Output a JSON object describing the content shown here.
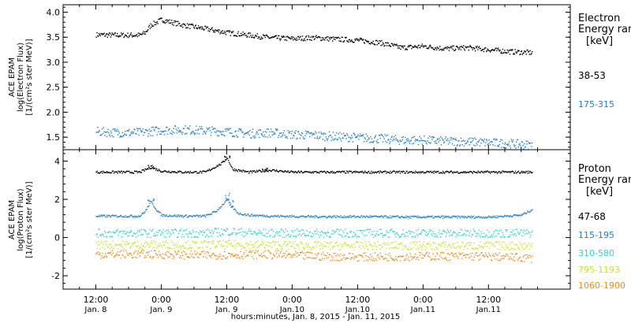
{
  "chart_data": [
    {
      "type": "scatter",
      "instrument": "ACE EPAM",
      "ylabel_line1": "ACE EPAM",
      "ylabel_line2": "log(Electron Flux)",
      "ylabel_line3": "[1/(cm²s ster MeV)]",
      "legend_title_line1": "Electron",
      "legend_title_line2": "Energy ran",
      "legend_unit": "[keV]",
      "ylim": [
        1.25,
        4.15
      ],
      "yticks": [
        "4.0",
        "3.5",
        "3.0",
        "2.5",
        "2.0",
        "1.5"
      ],
      "yticks_values": [
        4.0,
        3.5,
        3.0,
        2.5,
        2.0,
        1.5
      ],
      "series": [
        {
          "name": "38-53",
          "color": "#000000",
          "x": [
            0,
            4,
            8,
            9,
            10,
            12,
            16,
            20,
            24,
            28,
            32,
            36,
            40,
            44,
            48,
            52,
            56,
            60,
            64,
            68,
            72,
            76,
            80
          ],
          "y": [
            3.56,
            3.55,
            3.55,
            3.6,
            3.75,
            3.86,
            3.75,
            3.68,
            3.6,
            3.55,
            3.5,
            3.48,
            3.5,
            3.47,
            3.45,
            3.4,
            3.3,
            3.33,
            3.28,
            3.3,
            3.26,
            3.22,
            3.2
          ]
        },
        {
          "name": "175-315",
          "color": "#1a7fd4",
          "x": [
            0,
            4,
            8,
            12,
            16,
            20,
            24,
            28,
            32,
            36,
            40,
            44,
            48,
            52,
            56,
            60,
            64,
            68,
            72,
            76,
            80
          ],
          "y": [
            1.62,
            1.6,
            1.6,
            1.65,
            1.66,
            1.64,
            1.62,
            1.58,
            1.6,
            1.56,
            1.55,
            1.52,
            1.5,
            1.48,
            1.45,
            1.45,
            1.43,
            1.42,
            1.4,
            1.38,
            1.35
          ]
        }
      ]
    },
    {
      "type": "scatter",
      "instrument": "ACE EPAM",
      "ylabel_line1": "ACE EPAM",
      "ylabel_line2": "log(Proton Flux)",
      "ylabel_line3": "[1/(cm²s ster MeV)]",
      "legend_title_line1": "Proton",
      "legend_title_line2": "Energy ran",
      "legend_unit": "[keV]",
      "ylim": [
        -2.7,
        4.6
      ],
      "yticks": [
        "4",
        "2",
        "0",
        "-2"
      ],
      "yticks_values": [
        4,
        2,
        0,
        -2
      ],
      "series": [
        {
          "name": "47-68",
          "color": "#000000",
          "x": [
            0,
            8,
            10,
            12,
            16,
            20,
            23,
            24,
            25,
            28,
            32,
            36,
            40,
            48,
            56,
            64,
            72,
            80
          ],
          "y": [
            3.45,
            3.45,
            3.7,
            3.5,
            3.45,
            3.45,
            3.9,
            4.2,
            3.6,
            3.45,
            3.55,
            3.45,
            3.45,
            3.45,
            3.45,
            3.45,
            3.45,
            3.45
          ],
          "spikes": [
            [
              10,
              3.9
            ],
            [
              24,
              4.3
            ],
            [
              31,
              3.7
            ]
          ]
        },
        {
          "name": "115-195",
          "color": "#1a7fd4",
          "x": [
            0,
            8,
            9,
            10,
            11,
            12,
            16,
            20,
            22,
            24,
            25,
            26,
            28,
            32,
            40,
            48,
            56,
            64,
            72,
            78,
            80
          ],
          "y": [
            1.15,
            1.15,
            1.4,
            1.9,
            1.5,
            1.2,
            1.15,
            1.15,
            1.4,
            2.0,
            1.6,
            1.3,
            1.2,
            1.15,
            1.12,
            1.12,
            1.1,
            1.1,
            1.1,
            1.2,
            1.5
          ],
          "spikes": [
            [
              10,
              2.1
            ],
            [
              24,
              2.6
            ],
            [
              25,
              2.0
            ]
          ]
        },
        {
          "name": "310-580",
          "color": "#22d6d6",
          "x": [
            0,
            10,
            20,
            24,
            30,
            40,
            50,
            60,
            70,
            80
          ],
          "y": [
            0.25,
            0.25,
            0.25,
            0.35,
            0.25,
            0.25,
            0.25,
            0.25,
            0.25,
            0.25
          ]
        },
        {
          "name": "795-1193",
          "color": "#c2e81c",
          "x": [
            0,
            10,
            20,
            30,
            40,
            50,
            60,
            70,
            80
          ],
          "y": [
            -0.35,
            -0.35,
            -0.35,
            -0.35,
            -0.4,
            -0.4,
            -0.4,
            -0.4,
            -0.4
          ]
        },
        {
          "name": "1060-1900",
          "color": "#f08a12",
          "x": [
            0,
            10,
            20,
            30,
            40,
            50,
            60,
            70,
            80
          ],
          "y": [
            -0.85,
            -0.85,
            -0.9,
            -0.85,
            -0.95,
            -1.0,
            -0.95,
            -0.95,
            -1.05
          ]
        }
      ]
    }
  ],
  "xaxis": {
    "xlim": [
      -6,
      87
    ],
    "ticks": [
      {
        "x": 0,
        "time": "12:00",
        "date": "Jan. 8"
      },
      {
        "x": 12,
        "time": "0:00",
        "date": "Jan. 9"
      },
      {
        "x": 24,
        "time": "12:00",
        "date": "Jan. 9"
      },
      {
        "x": 36,
        "time": "0:00",
        "date": "Jan.10"
      },
      {
        "x": 48,
        "time": "12:00",
        "date": "Jan.10"
      },
      {
        "x": 60,
        "time": "0:00",
        "date": "Jan.11"
      },
      {
        "x": 72,
        "time": "12:00",
        "date": "Jan.11"
      }
    ],
    "label": "hours:minutes, Jan.  8, 2015 - Jan. 11, 2015"
  }
}
